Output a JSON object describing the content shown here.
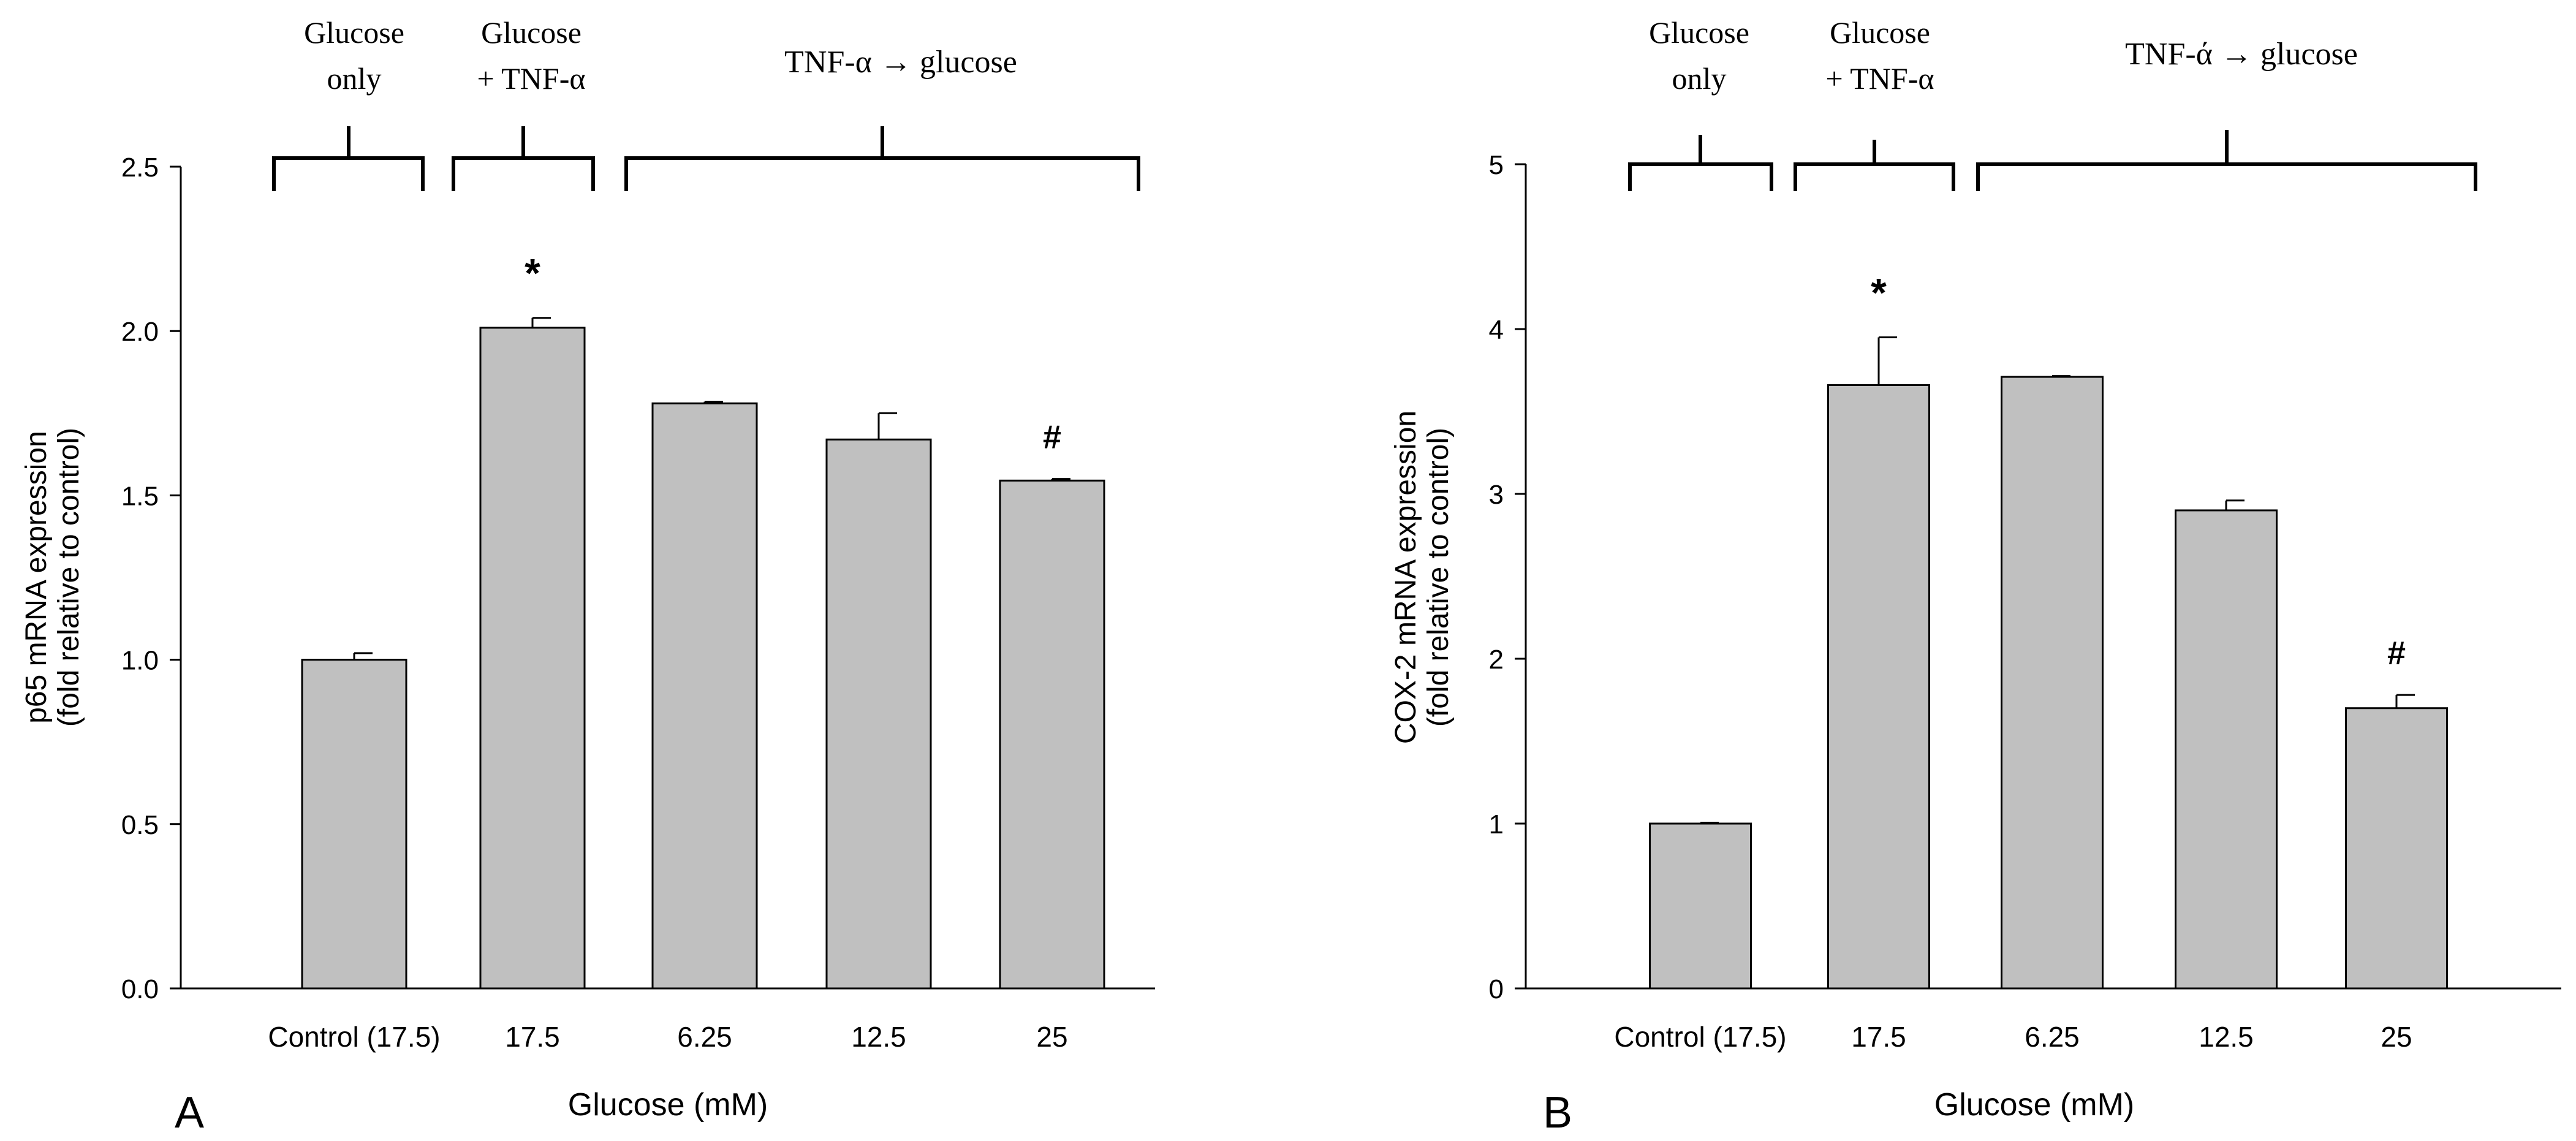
{
  "colors": {
    "bar_fill": "#c0c0c0",
    "stroke": "#000000",
    "background": "#ffffff"
  },
  "xlabel": "Glucose (mM)",
  "group_labels": {
    "glucose_only_line1": "Glucose",
    "glucose_only_line2": "only",
    "glucose_tnf_line1": "Glucose",
    "glucose_tnf_line2": "+ TNF-α",
    "tnf_then_glucose_A": "TNF-α → glucose",
    "tnf_then_glucose_B": "TNF-ά → glucose"
  },
  "chart_data": [
    {
      "type": "bar",
      "panel": "A",
      "categories": [
        "Control (17.5)",
        "17.5",
        "6.25",
        "12.5",
        "25"
      ],
      "values": [
        1.0,
        2.01,
        1.78,
        1.67,
        1.545
      ],
      "errors": [
        0.02,
        0.03,
        0.005,
        0.08,
        0.005
      ],
      "annotations": [
        "",
        "*",
        "",
        "",
        "#"
      ],
      "ylim": [
        0,
        2.5
      ],
      "yticks": [
        0.0,
        0.5,
        1.0,
        1.5,
        2.0,
        2.5
      ],
      "ytick_labels": [
        "0.0",
        "0.5",
        "1.0",
        "1.5",
        "2.0",
        "2.5"
      ],
      "ylabel_line1": "p65 mRNA expression",
      "ylabel_line2": "(fold relative to control)",
      "xlabel": "Glucose (mM)"
    },
    {
      "type": "bar",
      "panel": "B",
      "categories": [
        "Control (17.5)",
        "17.5",
        "6.25",
        "12.5",
        "25"
      ],
      "values": [
        1.0,
        3.66,
        3.71,
        2.9,
        1.7
      ],
      "errors": [
        0.005,
        0.29,
        0.005,
        0.06,
        0.08
      ],
      "annotations": [
        "",
        "*",
        "",
        "",
        "#"
      ],
      "ylim": [
        0,
        5
      ],
      "yticks": [
        0,
        1,
        2,
        3,
        4,
        5
      ],
      "ytick_labels": [
        "0",
        "1",
        "2",
        "3",
        "4",
        "5"
      ],
      "ylabel_line1": "COX-2 mRNA expression",
      "ylabel_line2": "(fold relative to control)",
      "xlabel": "Glucose (mM)"
    }
  ]
}
